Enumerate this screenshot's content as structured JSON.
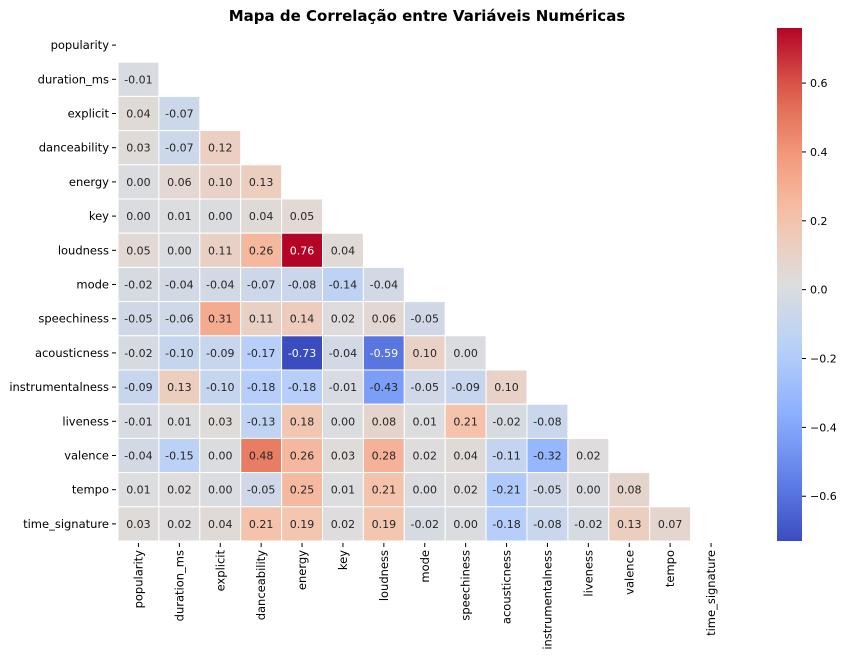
{
  "chart_data": {
    "type": "heatmap",
    "title": "Mapa de Correlação entre Variáveis Numéricas",
    "variables": [
      "popularity",
      "duration_ms",
      "explicit",
      "danceability",
      "energy",
      "key",
      "loudness",
      "mode",
      "speechiness",
      "acousticness",
      "instrumentalness",
      "liveness",
      "valence",
      "tempo",
      "time_signature"
    ],
    "mask": "upper-triangle-including-diagonal",
    "values": [
      [],
      [
        -0.01
      ],
      [
        0.04,
        -0.07
      ],
      [
        0.03,
        -0.07,
        0.12
      ],
      [
        -0.0,
        0.06,
        0.1,
        0.13
      ],
      [
        -0.0,
        0.01,
        0.0,
        0.04,
        0.05
      ],
      [
        0.05,
        -0.0,
        0.11,
        0.26,
        0.76,
        0.04
      ],
      [
        -0.02,
        -0.04,
        -0.04,
        -0.07,
        -0.08,
        -0.14,
        -0.04
      ],
      [
        -0.05,
        -0.06,
        0.31,
        0.11,
        0.14,
        0.02,
        0.06,
        -0.05
      ],
      [
        -0.02,
        -0.1,
        -0.09,
        -0.17,
        -0.73,
        -0.04,
        -0.59,
        0.1,
        -0.0
      ],
      [
        -0.09,
        0.13,
        -0.1,
        -0.18,
        -0.18,
        -0.01,
        -0.43,
        -0.05,
        -0.09,
        0.1
      ],
      [
        -0.01,
        0.01,
        0.03,
        -0.13,
        0.18,
        -0.0,
        0.08,
        0.01,
        0.21,
        -0.02,
        -0.08
      ],
      [
        -0.04,
        -0.15,
        -0.0,
        0.48,
        0.26,
        0.03,
        0.28,
        0.02,
        0.04,
        -0.11,
        -0.32,
        0.02
      ],
      [
        0.01,
        0.02,
        -0.0,
        -0.05,
        0.25,
        0.01,
        0.21,
        0.0,
        0.02,
        -0.21,
        -0.05,
        0.0,
        0.08
      ],
      [
        0.03,
        0.02,
        0.04,
        0.21,
        0.19,
        0.02,
        0.19,
        -0.02,
        -0.0,
        -0.18,
        -0.08,
        -0.02,
        0.13,
        0.07
      ]
    ],
    "value_format": "2 decimals",
    "colormap": "coolwarm",
    "color_range": [
      -0.73,
      0.76
    ],
    "colorbar_ticks": [
      "0.6",
      "0.4",
      "0.2",
      "0.0",
      "−0.2",
      "−0.4",
      "−0.6"
    ],
    "colorbar_tick_values": [
      0.6,
      0.4,
      0.2,
      0.0,
      -0.2,
      -0.4,
      -0.6
    ],
    "colorbar_position": "right",
    "grid": false
  }
}
